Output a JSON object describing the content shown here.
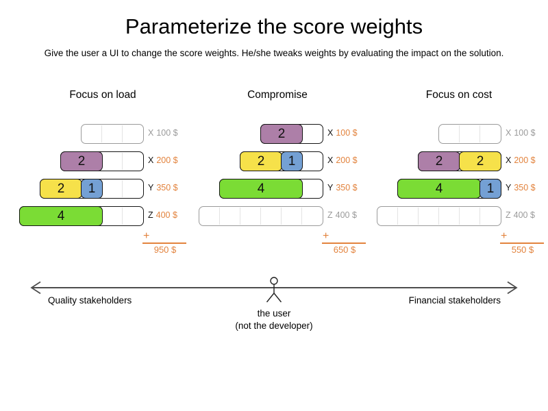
{
  "title": "Parameterize the score weights",
  "subtitle": "Give the user a UI to change the score weights. He/she tweaks weights by evaluating the impact on the solution.",
  "colors": {
    "purple": "#ad7fa8",
    "yellow": "#f6e14a",
    "blue": "#74a0d4",
    "green": "#7bdc35",
    "orange": "#e2823c",
    "grey": "#9a9a9a"
  },
  "columns": [
    {
      "title": "Focus on load",
      "rows": [
        {
          "letter": "X",
          "value": "100 $",
          "units": 3,
          "empty": true,
          "blocks": []
        },
        {
          "letter": "X",
          "value": "200 $",
          "units": 4,
          "empty": false,
          "blocks": [
            {
              "value": "2",
              "color": "purple",
              "units": 2
            }
          ]
        },
        {
          "letter": "Y",
          "value": "350 $",
          "units": 5,
          "empty": false,
          "blocks": [
            {
              "value": "2",
              "color": "yellow",
              "units": 2
            },
            {
              "value": "1",
              "color": "blue",
              "units": 1
            }
          ]
        },
        {
          "letter": "Z",
          "value": "400 $",
          "units": 6,
          "empty": false,
          "blocks": [
            {
              "value": "4",
              "color": "green",
              "units": 4
            }
          ]
        }
      ],
      "plus": "+",
      "total": "950 $"
    },
    {
      "title": "Compromise",
      "rows": [
        {
          "letter": "X",
          "value": "100 $",
          "units": 3,
          "empty": false,
          "blocks": [
            {
              "value": "2",
              "color": "purple",
              "units": 2
            }
          ]
        },
        {
          "letter": "X",
          "value": "200 $",
          "units": 4,
          "empty": false,
          "blocks": [
            {
              "value": "2",
              "color": "yellow",
              "units": 2
            },
            {
              "value": "1",
              "color": "blue",
              "units": 1
            }
          ]
        },
        {
          "letter": "Y",
          "value": "350 $",
          "units": 5,
          "empty": false,
          "blocks": [
            {
              "value": "4",
              "color": "green",
              "units": 4
            }
          ]
        },
        {
          "letter": "Z",
          "value": "400 $",
          "units": 6,
          "empty": true,
          "blocks": []
        }
      ],
      "plus": "+",
      "total": "650 $"
    },
    {
      "title": "Focus on cost",
      "rows": [
        {
          "letter": "X",
          "value": "100 $",
          "units": 3,
          "empty": true,
          "blocks": []
        },
        {
          "letter": "X",
          "value": "200 $",
          "units": 4,
          "empty": false,
          "blocks": [
            {
              "value": "2",
              "color": "purple",
              "units": 2
            },
            {
              "value": "2",
              "color": "yellow",
              "units": 2
            }
          ]
        },
        {
          "letter": "Y",
          "value": "350 $",
          "units": 5,
          "empty": false,
          "blocks": [
            {
              "value": "4",
              "color": "green",
              "units": 4
            },
            {
              "value": "1",
              "color": "blue",
              "units": 1
            }
          ]
        },
        {
          "letter": "Z",
          "value": "400 $",
          "units": 6,
          "empty": true,
          "blocks": []
        }
      ],
      "plus": "+",
      "total": "550 $"
    }
  ],
  "axis": {
    "left_label": "Quality stakeholders",
    "right_label": "Financial stakeholders",
    "figure_caption_line1": "the user",
    "figure_caption_line2": "(not the developer)"
  }
}
